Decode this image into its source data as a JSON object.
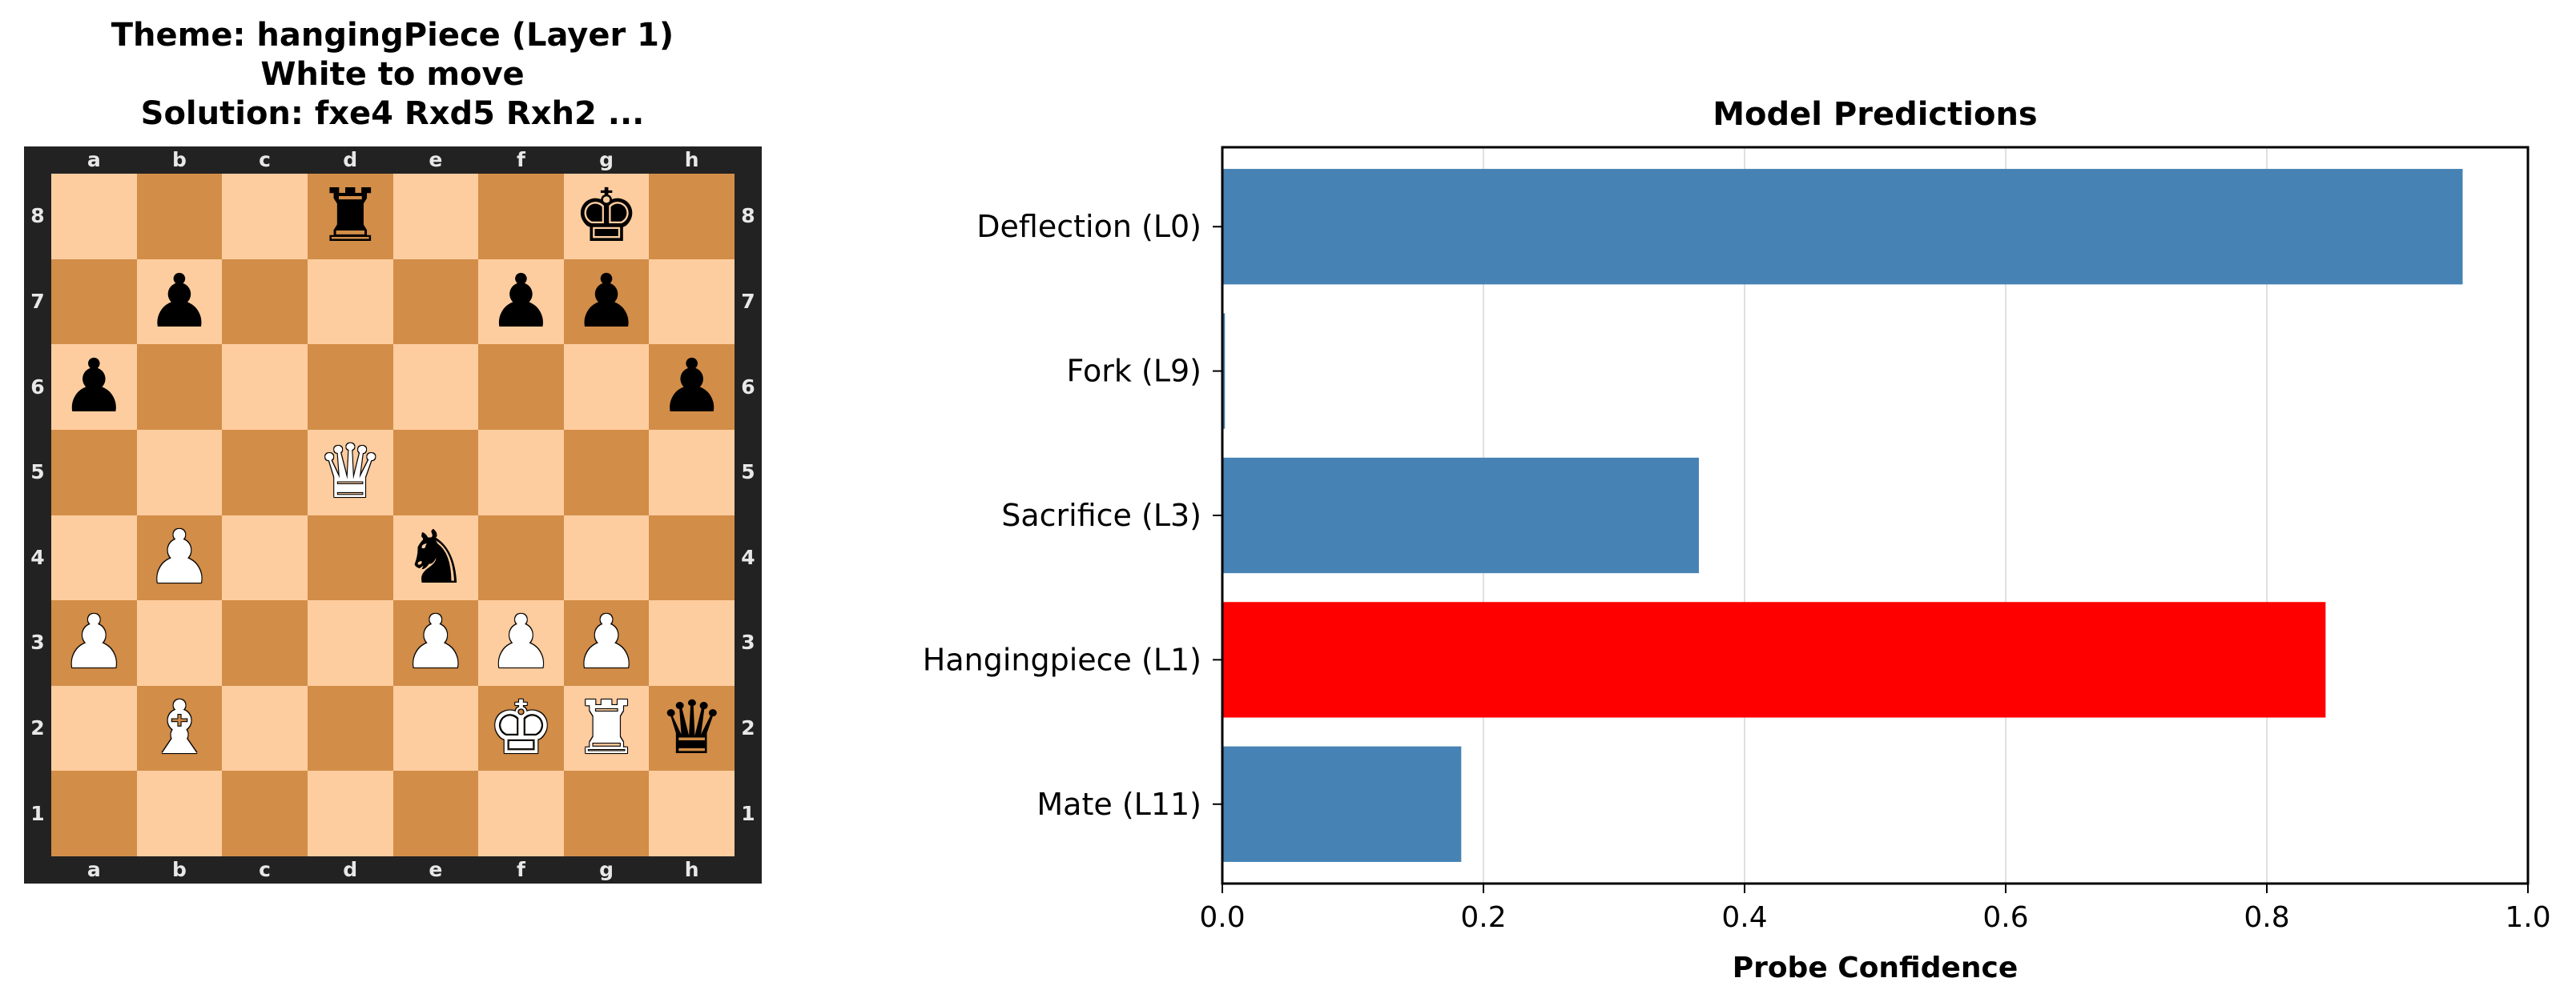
{
  "board_panel": {
    "title_lines": [
      "Theme: hangingPiece (Layer 1)",
      "White to move",
      "Solution: fxe4 Rxd5 Rxh2 ..."
    ],
    "files": [
      "a",
      "b",
      "c",
      "d",
      "e",
      "f",
      "g",
      "h"
    ],
    "ranks": [
      "8",
      "7",
      "6",
      "5",
      "4",
      "3",
      "2",
      "1"
    ],
    "colors": {
      "light_square": "#fecd9f",
      "dark_square": "#d28d48",
      "frame": "#222222"
    },
    "pieces": [
      {
        "square": "d8",
        "piece": "rook",
        "color": "black",
        "glyph": "♜"
      },
      {
        "square": "g8",
        "piece": "king",
        "color": "black",
        "glyph": "♚"
      },
      {
        "square": "b7",
        "piece": "pawn",
        "color": "black",
        "glyph": "♟"
      },
      {
        "square": "f7",
        "piece": "pawn",
        "color": "black",
        "glyph": "♟"
      },
      {
        "square": "g7",
        "piece": "pawn",
        "color": "black",
        "glyph": "♟"
      },
      {
        "square": "a6",
        "piece": "pawn",
        "color": "black",
        "glyph": "♟"
      },
      {
        "square": "h6",
        "piece": "pawn",
        "color": "black",
        "glyph": "♟"
      },
      {
        "square": "d5",
        "piece": "queen",
        "color": "white",
        "glyph": "♛"
      },
      {
        "square": "b4",
        "piece": "pawn",
        "color": "white",
        "glyph": "♟"
      },
      {
        "square": "e4",
        "piece": "knight",
        "color": "black",
        "glyph": "♞"
      },
      {
        "square": "a3",
        "piece": "pawn",
        "color": "white",
        "glyph": "♟"
      },
      {
        "square": "e3",
        "piece": "pawn",
        "color": "white",
        "glyph": "♟"
      },
      {
        "square": "f3",
        "piece": "pawn",
        "color": "white",
        "glyph": "♟"
      },
      {
        "square": "g3",
        "piece": "pawn",
        "color": "white",
        "glyph": "♟"
      },
      {
        "square": "b2",
        "piece": "bishop",
        "color": "white",
        "glyph": "♝"
      },
      {
        "square": "f2",
        "piece": "king",
        "color": "white",
        "glyph": "♚"
      },
      {
        "square": "g2",
        "piece": "rook",
        "color": "white",
        "glyph": "♜"
      },
      {
        "square": "h2",
        "piece": "queen",
        "color": "black",
        "glyph": "♛"
      }
    ]
  },
  "chart_data": {
    "type": "bar",
    "orientation": "horizontal",
    "title": "Model Predictions",
    "xlabel": "Probe Confidence",
    "ylabel": "",
    "xlim": [
      0.0,
      1.0
    ],
    "xticks": [
      "0.0",
      "0.2",
      "0.4",
      "0.6",
      "0.8",
      "1.0"
    ],
    "grid": "x",
    "categories": [
      "Deflection (L0)",
      "Fork (L9)",
      "Sacrifice (L3)",
      "Hangingpiece (L1)",
      "Mate (L11)"
    ],
    "values": [
      0.95,
      0.002,
      0.365,
      0.845,
      0.183
    ],
    "bar_colors": [
      "#4682b4",
      "#4682b4",
      "#4682b4",
      "#ff0000",
      "#4682b4"
    ]
  }
}
